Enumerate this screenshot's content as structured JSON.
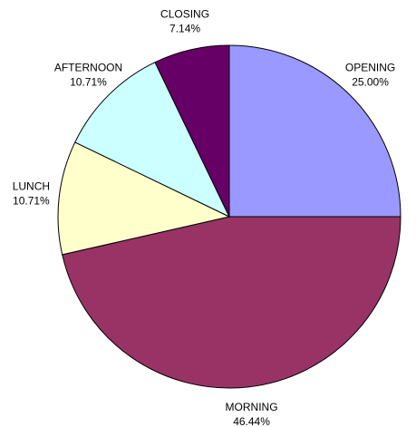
{
  "chart_data": {
    "type": "pie",
    "categories": [
      "OPENING",
      "MORNING",
      "LUNCH",
      "AFTERNOON",
      "CLOSING"
    ],
    "values": [
      25,
      46.44,
      10.71,
      10.71,
      7.14
    ],
    "value_labels": [
      "25.00%",
      "46.44%",
      "10.71%",
      "10.71%",
      "7.14%"
    ],
    "colors": [
      "#9999ff",
      "#993366",
      "#ffffcc",
      "#ccffff",
      "#660066"
    ]
  }
}
